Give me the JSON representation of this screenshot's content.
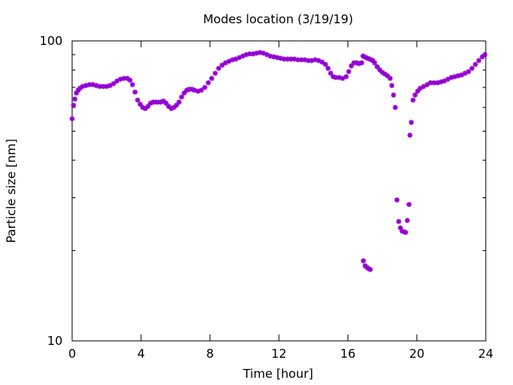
{
  "chart_data": {
    "type": "scatter",
    "title": "Modes location (3/19/19)",
    "xlabel": "Time [hour]",
    "ylabel": "Particle size [nm]",
    "xlim": [
      0,
      24
    ],
    "ylim": [
      10,
      100
    ],
    "yscale": "log",
    "xticks": [
      0,
      4,
      8,
      12,
      16,
      20,
      24
    ],
    "yticks": [
      10,
      100
    ],
    "grid": false,
    "legend": "none",
    "marker_color": "#9400d3",
    "marker": "star",
    "series": [
      {
        "points": [
          [
            0.0,
            55.0
          ],
          [
            0.08,
            61.0
          ],
          [
            0.16,
            64.0
          ],
          [
            0.25,
            67.0
          ],
          [
            0.35,
            68.5
          ],
          [
            0.45,
            69.5
          ],
          [
            0.6,
            70.5
          ],
          [
            0.8,
            71.0
          ],
          [
            1.0,
            71.5
          ],
          [
            1.2,
            71.5
          ],
          [
            1.4,
            71.0
          ],
          [
            1.6,
            70.5
          ],
          [
            1.8,
            70.5
          ],
          [
            2.0,
            70.5
          ],
          [
            2.2,
            71.0
          ],
          [
            2.4,
            72.0
          ],
          [
            2.6,
            73.5
          ],
          [
            2.8,
            74.5
          ],
          [
            3.0,
            75.0
          ],
          [
            3.2,
            75.0
          ],
          [
            3.35,
            74.0
          ],
          [
            3.5,
            71.5
          ],
          [
            3.65,
            67.5
          ],
          [
            3.8,
            63.5
          ],
          [
            3.95,
            61.5
          ],
          [
            4.1,
            60.0
          ],
          [
            4.25,
            59.5
          ],
          [
            4.4,
            60.5
          ],
          [
            4.55,
            62.0
          ],
          [
            4.7,
            62.5
          ],
          [
            4.85,
            62.5
          ],
          [
            5.0,
            62.5
          ],
          [
            5.15,
            62.5
          ],
          [
            5.3,
            63.0
          ],
          [
            5.45,
            62.0
          ],
          [
            5.6,
            60.5
          ],
          [
            5.75,
            59.5
          ],
          [
            5.9,
            60.0
          ],
          [
            6.05,
            61.0
          ],
          [
            6.2,
            62.5
          ],
          [
            6.35,
            65.0
          ],
          [
            6.5,
            67.0
          ],
          [
            6.65,
            68.5
          ],
          [
            6.8,
            69.0
          ],
          [
            6.95,
            69.0
          ],
          [
            7.1,
            68.5
          ],
          [
            7.3,
            68.0
          ],
          [
            7.5,
            68.5
          ],
          [
            7.7,
            70.0
          ],
          [
            7.9,
            72.5
          ],
          [
            8.1,
            75.0
          ],
          [
            8.3,
            78.0
          ],
          [
            8.5,
            81.0
          ],
          [
            8.7,
            83.0
          ],
          [
            8.9,
            84.5
          ],
          [
            9.1,
            85.5
          ],
          [
            9.3,
            86.5
          ],
          [
            9.5,
            87.0
          ],
          [
            9.7,
            88.0
          ],
          [
            9.9,
            89.0
          ],
          [
            10.1,
            90.0
          ],
          [
            10.3,
            90.5
          ],
          [
            10.5,
            90.5
          ],
          [
            10.7,
            91.0
          ],
          [
            10.9,
            91.5
          ],
          [
            11.1,
            91.0
          ],
          [
            11.3,
            90.0
          ],
          [
            11.5,
            89.0
          ],
          [
            11.7,
            88.5
          ],
          [
            11.9,
            88.0
          ],
          [
            12.1,
            87.5
          ],
          [
            12.3,
            87.0
          ],
          [
            12.5,
            87.0
          ],
          [
            12.7,
            87.0
          ],
          [
            12.9,
            87.0
          ],
          [
            13.1,
            86.5
          ],
          [
            13.3,
            86.5
          ],
          [
            13.5,
            86.5
          ],
          [
            13.7,
            86.0
          ],
          [
            13.9,
            86.0
          ],
          [
            14.1,
            86.5
          ],
          [
            14.3,
            86.0
          ],
          [
            14.5,
            85.0
          ],
          [
            14.7,
            83.5
          ],
          [
            14.85,
            81.0
          ],
          [
            15.0,
            78.0
          ],
          [
            15.15,
            76.0
          ],
          [
            15.3,
            75.5
          ],
          [
            15.5,
            75.5
          ],
          [
            15.7,
            75.0
          ],
          [
            15.9,
            76.0
          ],
          [
            16.05,
            79.0
          ],
          [
            16.2,
            82.5
          ],
          [
            16.35,
            84.5
          ],
          [
            16.5,
            84.5
          ],
          [
            16.65,
            84.0
          ],
          [
            16.8,
            84.5
          ],
          [
            16.88,
            89.0
          ],
          [
            16.96,
            88.5
          ],
          [
            17.05,
            88.0
          ],
          [
            17.15,
            87.5
          ],
          [
            17.25,
            87.0
          ],
          [
            17.35,
            86.5
          ],
          [
            17.45,
            86.0
          ],
          [
            17.55,
            84.5
          ],
          [
            17.7,
            82.0
          ],
          [
            17.85,
            80.0
          ],
          [
            18.0,
            78.5
          ],
          [
            18.15,
            77.5
          ],
          [
            18.3,
            76.5
          ],
          [
            18.45,
            75.0
          ],
          [
            18.55,
            71.0
          ],
          [
            18.65,
            66.0
          ],
          [
            18.75,
            60.0
          ],
          [
            16.9,
            18.5
          ],
          [
            17.0,
            17.8
          ],
          [
            17.1,
            17.6
          ],
          [
            17.2,
            17.4
          ],
          [
            17.3,
            17.3
          ],
          [
            18.85,
            29.5
          ],
          [
            18.95,
            25.0
          ],
          [
            19.05,
            23.8
          ],
          [
            19.15,
            23.2
          ],
          [
            19.25,
            23.1
          ],
          [
            19.35,
            23.0
          ],
          [
            19.45,
            25.2
          ],
          [
            19.55,
            28.5
          ],
          [
            19.6,
            48.5
          ],
          [
            19.68,
            53.5
          ],
          [
            19.78,
            63.5
          ],
          [
            19.9,
            66.0
          ],
          [
            20.05,
            68.0
          ],
          [
            20.2,
            69.5
          ],
          [
            20.4,
            70.5
          ],
          [
            20.6,
            71.5
          ],
          [
            20.8,
            72.5
          ],
          [
            21.0,
            72.5
          ],
          [
            21.2,
            72.5
          ],
          [
            21.4,
            73.0
          ],
          [
            21.6,
            73.5
          ],
          [
            21.8,
            74.5
          ],
          [
            22.0,
            75.5
          ],
          [
            22.2,
            76.0
          ],
          [
            22.4,
            76.5
          ],
          [
            22.6,
            77.0
          ],
          [
            22.8,
            78.0
          ],
          [
            23.0,
            79.0
          ],
          [
            23.2,
            81.0
          ],
          [
            23.4,
            83.5
          ],
          [
            23.6,
            86.0
          ],
          [
            23.8,
            88.5
          ],
          [
            23.95,
            90.0
          ]
        ]
      }
    ]
  }
}
